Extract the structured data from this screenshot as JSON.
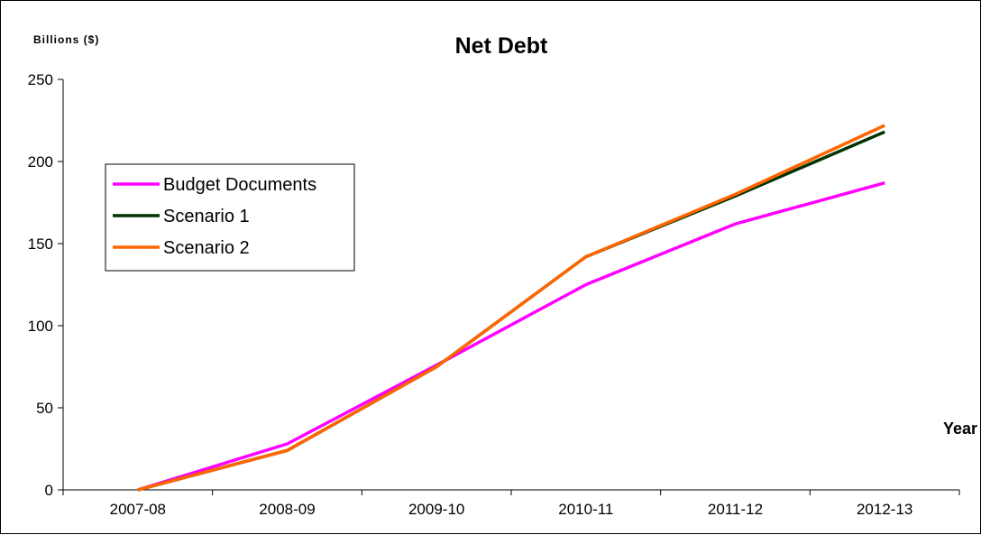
{
  "chart_data": {
    "type": "line",
    "title": "Net Debt",
    "ylabel": "Billions ($)",
    "xlabel": "Year",
    "categories": [
      "2007-08",
      "2008-09",
      "2009-10",
      "2010-11",
      "2011-12",
      "2012-13"
    ],
    "ylim": [
      0,
      250
    ],
    "yticks": [
      0,
      50,
      100,
      150,
      200,
      250
    ],
    "grid": false,
    "legend_position": "left",
    "series": [
      {
        "name": "Budget Documents",
        "color": "#ff00ff",
        "values": [
          0,
          28,
          76,
          125,
          162,
          187
        ]
      },
      {
        "name": "Scenario 1",
        "color": "#003300",
        "values": [
          0,
          24,
          75,
          142,
          179,
          218
        ]
      },
      {
        "name": "Scenario 2",
        "color": "#ff6600",
        "values": [
          0,
          24,
          75,
          142,
          180,
          222
        ]
      }
    ]
  }
}
